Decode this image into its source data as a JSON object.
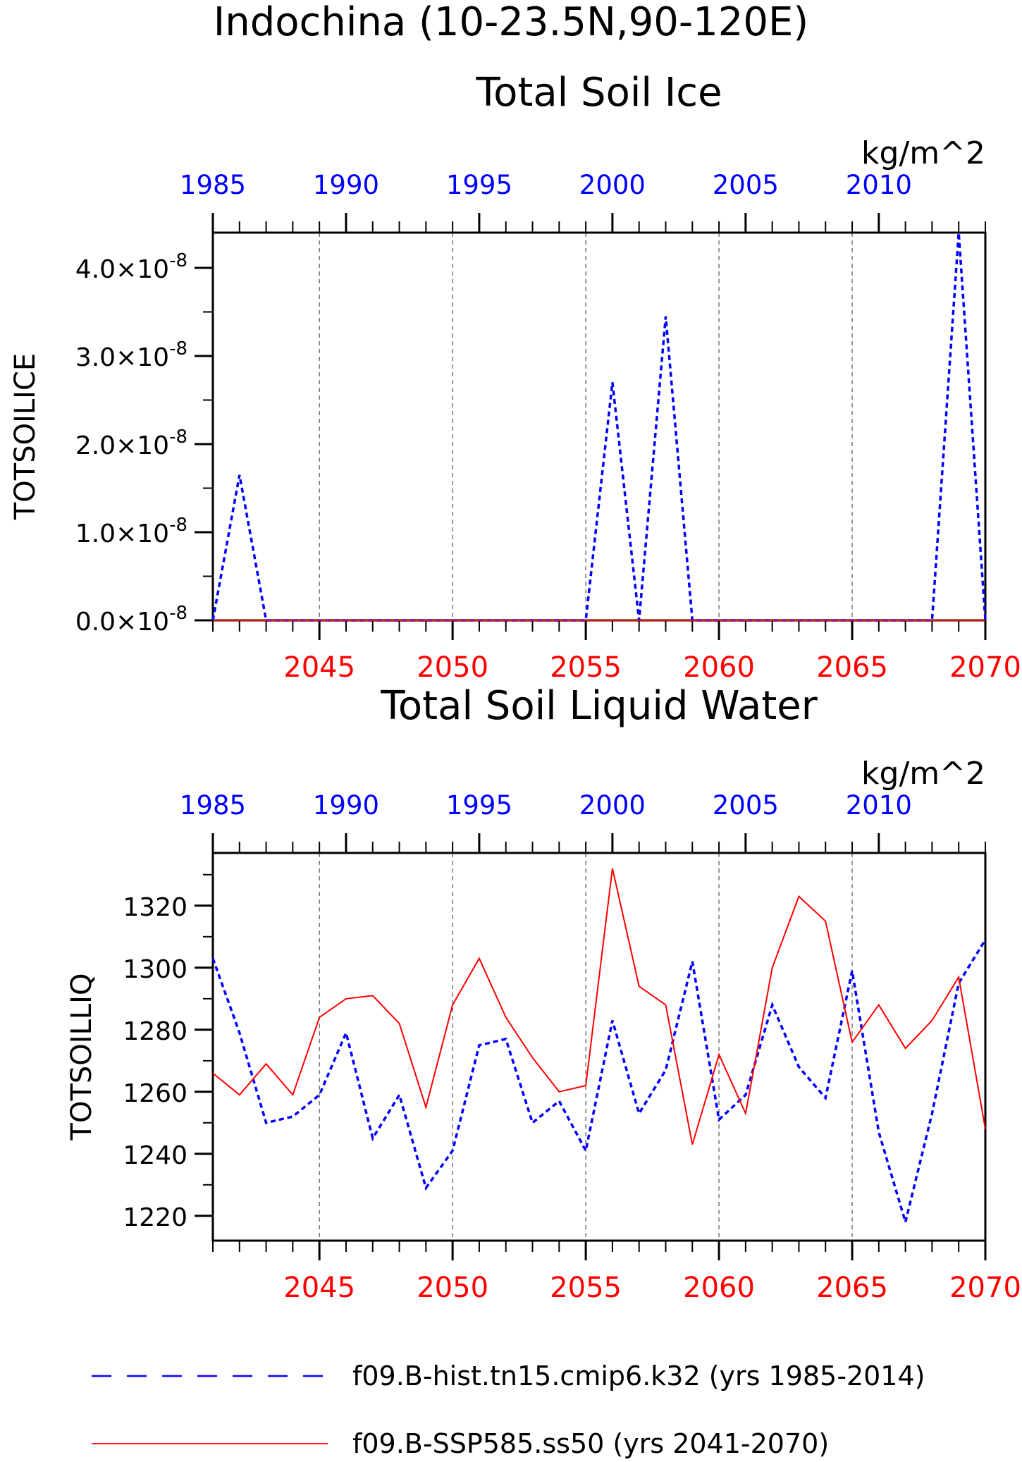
{
  "header": {
    "region": "Indochina (10-23.5N,90-120E)"
  },
  "colors": {
    "hist": "#0000ff",
    "ssp": "#ff0000",
    "axis": "#000000",
    "grid": "#555555"
  },
  "legend": [
    {
      "label": "f09.B-hist.tn15.cmip6.k32 (yrs 1985-2014)",
      "color": "#0000ff",
      "style": "dashed"
    },
    {
      "label": "f09.B-SSP585.ss50 (yrs 2041-2070)",
      "color": "#ff0000",
      "style": "solid"
    }
  ],
  "chart_data": [
    {
      "type": "line",
      "title": "Total Soil Ice",
      "units": "kg/m^2",
      "ylabel": "TOTSOILICE",
      "ylim": [
        0,
        4.4e-08
      ],
      "ytick_labels": [
        {
          "v": 0.0,
          "mant": "0.0",
          "exp": "-8"
        },
        {
          "v": 1e-08,
          "mant": "1.0",
          "exp": "-8"
        },
        {
          "v": 2e-08,
          "mant": "2.0",
          "exp": "-8"
        },
        {
          "v": 3e-08,
          "mant": "3.0",
          "exp": "-8"
        },
        {
          "v": 4e-08,
          "mant": "4.0",
          "exp": "-8"
        }
      ],
      "ytick_times": "×10",
      "top_axis": {
        "range": [
          1985,
          2014
        ],
        "tick_labels": [
          "1985",
          "1990",
          "1995",
          "2000",
          "2005",
          "2010"
        ]
      },
      "bottom_axis": {
        "range": [
          2041,
          2070
        ],
        "tick_labels": [
          "2045",
          "2050",
          "2055",
          "2060",
          "2065",
          "2070"
        ]
      },
      "grid": "vertical dashed at bottom-axis major ticks",
      "series": [
        {
          "name": "f09.B-hist.tn15.cmip6.k32 (yrs 1985-2014)",
          "axis": "top",
          "x": [
            1985,
            1986,
            1987,
            1988,
            1989,
            1990,
            1991,
            1992,
            1993,
            1994,
            1995,
            1996,
            1997,
            1998,
            1999,
            2000,
            2001,
            2002,
            2003,
            2004,
            2005,
            2006,
            2007,
            2008,
            2009,
            2010,
            2011,
            2012,
            2013,
            2014
          ],
          "values": [
            0,
            1.65e-08,
            0,
            0,
            0,
            0,
            0,
            0,
            0,
            0,
            0,
            0,
            0,
            0,
            0,
            2.7e-08,
            0,
            3.45e-08,
            0,
            0,
            0,
            0,
            0,
            0,
            0,
            0,
            0,
            0,
            4.4e-08,
            0
          ]
        },
        {
          "name": "f09.B-SSP585.ss50 (yrs 2041-2070)",
          "axis": "bottom",
          "x": [
            2041,
            2042,
            2043,
            2044,
            2045,
            2046,
            2047,
            2048,
            2049,
            2050,
            2051,
            2052,
            2053,
            2054,
            2055,
            2056,
            2057,
            2058,
            2059,
            2060,
            2061,
            2062,
            2063,
            2064,
            2065,
            2066,
            2067,
            2068,
            2069,
            2070
          ],
          "values": [
            0,
            0,
            0,
            0,
            0,
            0,
            0,
            0,
            0,
            0,
            0,
            0,
            0,
            0,
            0,
            0,
            0,
            0,
            0,
            0,
            0,
            0,
            0,
            0,
            0,
            0,
            0,
            0,
            0,
            0
          ]
        }
      ]
    },
    {
      "type": "line",
      "title": "Total Soil Liquid Water",
      "units": "kg/m^2",
      "ylabel": "TOTSOILLIQ",
      "ylim": [
        1212,
        1337
      ],
      "ytick_labels": [
        {
          "v": 1220,
          "mant": "1220"
        },
        {
          "v": 1240,
          "mant": "1240"
        },
        {
          "v": 1260,
          "mant": "1260"
        },
        {
          "v": 1280,
          "mant": "1280"
        },
        {
          "v": 1300,
          "mant": "1300"
        },
        {
          "v": 1320,
          "mant": "1320"
        }
      ],
      "top_axis": {
        "range": [
          1985,
          2014
        ],
        "tick_labels": [
          "1985",
          "1990",
          "1995",
          "2000",
          "2005",
          "2010"
        ]
      },
      "bottom_axis": {
        "range": [
          2041,
          2070
        ],
        "tick_labels": [
          "2045",
          "2050",
          "2055",
          "2060",
          "2065",
          "2070"
        ]
      },
      "grid": "vertical dashed at bottom-axis major ticks",
      "series": [
        {
          "name": "f09.B-hist.tn15.cmip6.k32 (yrs 1985-2014)",
          "axis": "top",
          "x": [
            1985,
            1986,
            1987,
            1988,
            1989,
            1990,
            1991,
            1992,
            1993,
            1994,
            1995,
            1996,
            1997,
            1998,
            1999,
            2000,
            2001,
            2002,
            2003,
            2004,
            2005,
            2006,
            2007,
            2008,
            2009,
            2010,
            2011,
            2012,
            2013,
            2014
          ],
          "values": [
            1303,
            1279,
            1250,
            1252,
            1259,
            1279,
            1245,
            1259,
            1229,
            1241,
            1275,
            1277,
            1250,
            1257,
            1241,
            1283,
            1253,
            1267,
            1302,
            1251,
            1259,
            1288,
            1268,
            1258,
            1299,
            1247,
            1218,
            1253,
            1295,
            1309
          ]
        },
        {
          "name": "f09.B-SSP585.ss50 (yrs 2041-2070)",
          "axis": "bottom",
          "x": [
            2041,
            2042,
            2043,
            2044,
            2045,
            2046,
            2047,
            2048,
            2049,
            2050,
            2051,
            2052,
            2053,
            2054,
            2055,
            2056,
            2057,
            2058,
            2059,
            2060,
            2061,
            2062,
            2063,
            2064,
            2065,
            2066,
            2067,
            2068,
            2069,
            2070
          ],
          "values": [
            1266,
            1259,
            1269,
            1259,
            1284,
            1290,
            1291,
            1282,
            1255,
            1288,
            1303,
            1284,
            1271,
            1260,
            1262,
            1332,
            1294,
            1288,
            1243,
            1272,
            1253,
            1300,
            1323,
            1315,
            1276,
            1288,
            1274,
            1283,
            1297,
            1248
          ]
        }
      ]
    }
  ]
}
